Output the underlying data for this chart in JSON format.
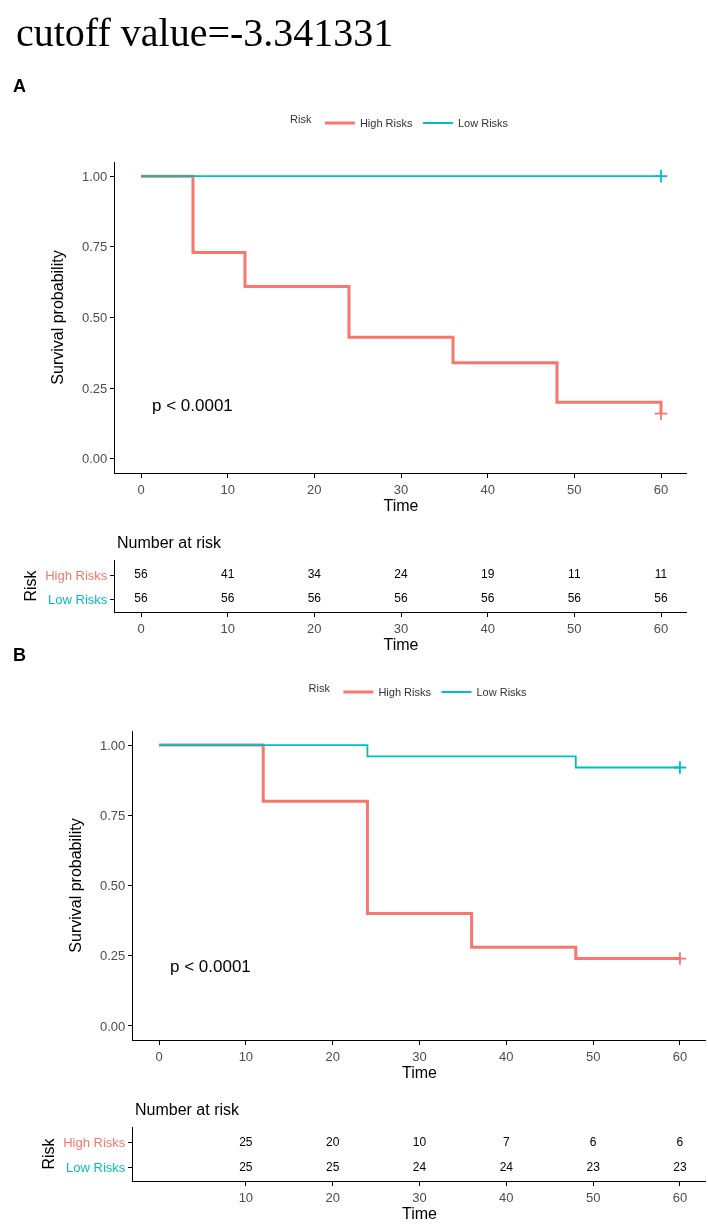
{
  "chart_data": [
    {
      "type": "step",
      "title": "cutoff value=-3.341331",
      "annotations": [
        "A",
        "p < 0.0001"
      ],
      "xlabel": "Time",
      "ylabel": "Survival probability",
      "legend_title": "Risk",
      "legend": "top",
      "xlim": [
        -3,
        63
      ],
      "xticks": [
        0,
        10,
        20,
        30,
        40,
        50,
        60
      ],
      "ylim": [
        -0.05,
        1.05
      ],
      "yticks": [
        {
          "value": 0,
          "label": "0.00"
        },
        {
          "value": 0.25,
          "label": "0.25"
        },
        {
          "value": 0.5,
          "label": "0.50"
        },
        {
          "value": 0.75,
          "label": "0.75"
        },
        {
          "value": 1,
          "label": "1.00"
        }
      ],
      "series": [
        {
          "name": "High Risks",
          "color": "#f8766d",
          "x": [
            0,
            6,
            12,
            24,
            36,
            48,
            60
          ],
          "values": [
            1,
            0.73,
            0.61,
            0.43,
            0.34,
            0.2,
            0.16
          ]
        },
        {
          "name": "Low Risks",
          "color": "#00bfc4",
          "x": [
            0,
            60
          ],
          "values": [
            1,
            1
          ]
        },
        {
          "type": "scatter",
          "marker": "cross",
          "color": "#f8766d",
          "x": [
            60
          ],
          "values": [
            0.16
          ]
        },
        {
          "type": "scatter",
          "marker": "cross",
          "color": "#00bfc4",
          "x": [
            60
          ],
          "values": [
            1
          ]
        }
      ]
    },
    {
      "type": "heatmap",
      "title": "Number at risk",
      "xlabel": "Time",
      "ylabel": "Risk",
      "data_labels": true,
      "categories": [
        "0",
        "10",
        "20",
        "30",
        "40",
        "50",
        "60"
      ],
      "y_categories": [
        "High Risks",
        "Low Risks"
      ],
      "cells": [
        [
          56,
          41,
          34,
          24,
          19,
          11,
          11
        ],
        [
          56,
          56,
          56,
          56,
          56,
          56,
          56
        ]
      ]
    },
    {
      "type": "step",
      "annotations": [
        "B",
        "p < 0.0001"
      ],
      "xlabel": "Time",
      "ylabel": "Survival probability",
      "legend_title": "Risk",
      "legend": "top",
      "xlim": [
        -3,
        63
      ],
      "xticks": [
        0,
        10,
        20,
        30,
        40,
        50,
        60
      ],
      "ylim": [
        -0.05,
        1.05
      ],
      "yticks": [
        {
          "value": 0,
          "label": "0.00"
        },
        {
          "value": 0.25,
          "label": "0.25"
        },
        {
          "value": 0.5,
          "label": "0.50"
        },
        {
          "value": 0.75,
          "label": "0.75"
        },
        {
          "value": 1,
          "label": "1.00"
        }
      ],
      "series": [
        {
          "name": "High Risks",
          "color": "#f8766d",
          "x": [
            0,
            12,
            24,
            36,
            48,
            60
          ],
          "values": [
            1,
            0.8,
            0.4,
            0.28,
            0.24,
            0.24
          ]
        },
        {
          "name": "Low Risks",
          "color": "#00bfc4",
          "x": [
            0,
            24,
            48,
            60
          ],
          "values": [
            1,
            0.96,
            0.92,
            0.92
          ]
        },
        {
          "type": "scatter",
          "marker": "cross",
          "color": "#f8766d",
          "x": [
            60
          ],
          "values": [
            0.24
          ]
        },
        {
          "type": "scatter",
          "marker": "cross",
          "color": "#00bfc4",
          "x": [
            60
          ],
          "values": [
            0.92
          ]
        }
      ]
    },
    {
      "type": "heatmap",
      "title": "Number at risk",
      "xlabel": "Time",
      "ylabel": "Risk",
      "data_labels": true,
      "categories": [
        "10",
        "20",
        "30",
        "40",
        "50",
        "60"
      ],
      "y_categories": [
        "High Risks",
        "Low Risks"
      ],
      "cells": [
        [
          25,
          20,
          10,
          7,
          6,
          6
        ],
        [
          25,
          25,
          24,
          24,
          23,
          23
        ]
      ]
    }
  ]
}
